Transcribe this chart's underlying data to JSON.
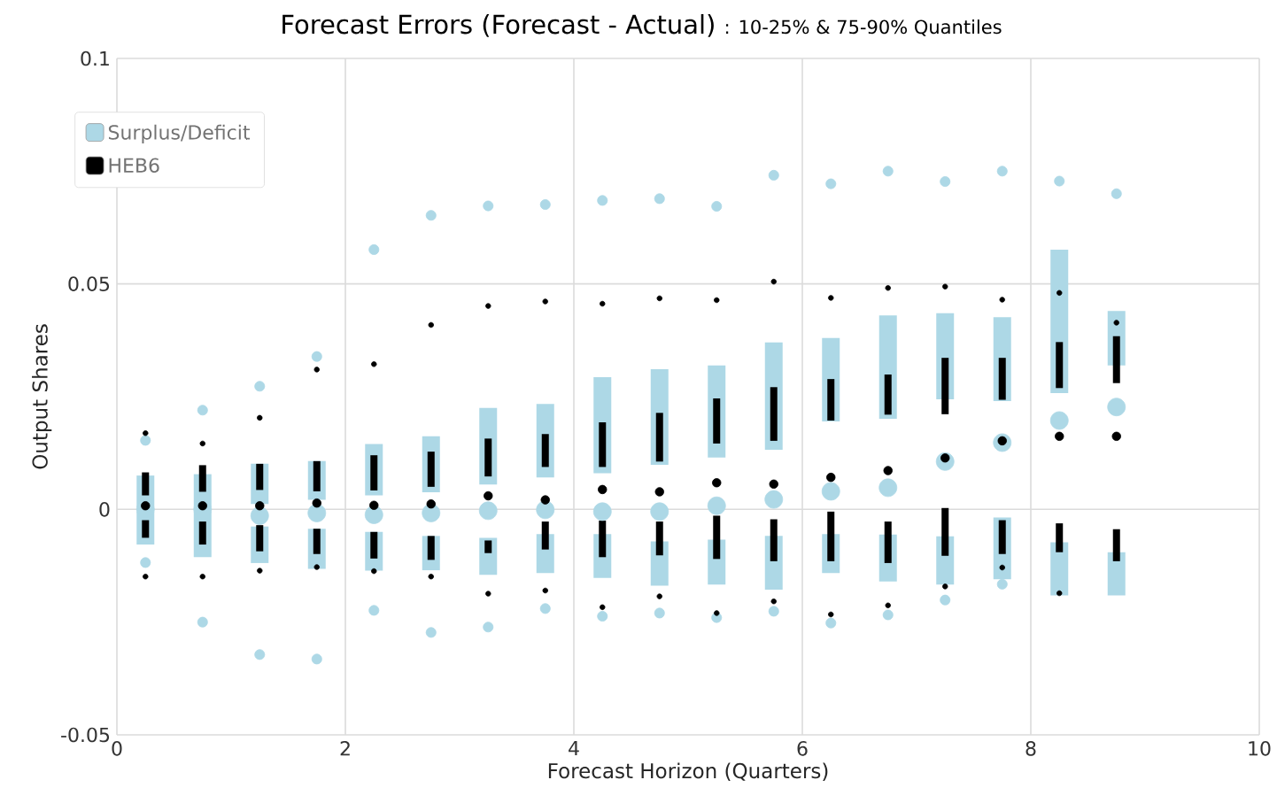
{
  "chart_data": {
    "type": "bar",
    "title": "Forecast Errors (Forecast - Actual)",
    "subtitle": ": 10-25% & 75-90% Quantiles",
    "xlabel": "Forecast Horizon (Quarters)",
    "ylabel": "Output Shares",
    "x": [
      0.25,
      0.75,
      1.25,
      1.75,
      2.25,
      2.75,
      3.25,
      3.75,
      4.25,
      4.75,
      5.25,
      5.75,
      6.25,
      6.75,
      7.25,
      7.75,
      8.25,
      8.75
    ],
    "xlim": [
      0,
      10
    ],
    "xticks": [
      0,
      2,
      4,
      6,
      8,
      10
    ],
    "ylim": [
      -0.05,
      0.1
    ],
    "yticks": [
      -0.05,
      0,
      0.05,
      0.1
    ],
    "grid": true,
    "legend": "top left",
    "series": [
      {
        "name": "Surplus/Deficit",
        "color": "#add8e6",
        "base": [
          0.0005,
          0.0005,
          0.0012,
          0.0021,
          0.0031,
          0.0038,
          0.0055,
          0.0071,
          0.008,
          0.0099,
          0.0115,
          0.0132,
          0.0195,
          0.0201,
          0.0244,
          0.024,
          0.0258,
          0.0319
        ],
        "values": [
          0.007,
          0.0073,
          0.0089,
          0.0086,
          0.0114,
          0.0124,
          0.017,
          0.0163,
          0.0213,
          0.0212,
          0.0204,
          0.0238,
          0.0185,
          0.0229,
          0.0191,
          0.0186,
          0.0318,
          0.0121
        ]
      },
      {
        "color": "#add8e6",
        "base": [
          -0.0078,
          -0.0106,
          -0.0119,
          -0.0132,
          -0.0136,
          -0.0135,
          -0.0145,
          -0.0141,
          -0.0152,
          -0.0169,
          -0.0167,
          -0.0178,
          -0.0141,
          -0.016,
          -0.0167,
          -0.0155,
          -0.0191,
          -0.0191
        ],
        "values": [
          0.0073,
          0.0101,
          0.0081,
          0.0089,
          0.0086,
          0.0076,
          0.0082,
          0.0086,
          0.0097,
          0.0098,
          0.01,
          0.0119,
          0.0086,
          0.0104,
          0.0107,
          0.0137,
          0.0118,
          0.0096
        ]
      },
      {
        "type": "scatter",
        "color": "#add8e6",
        "values": [
          0,
          0,
          -0.0014,
          -0.0008,
          -0.0012,
          -0.0008,
          -0.0003,
          -0.0001,
          -0.0005,
          -0.0005,
          0.0008,
          0.0022,
          0.004,
          0.0048,
          0.0106,
          0.0148,
          0.0197,
          0.0227
        ]
      },
      {
        "type": "scatter",
        "color": "#add8e6",
        "values": [
          0.0153,
          0.022,
          0.0273,
          0.0339,
          0.0576,
          0.0652,
          0.0673,
          0.0676,
          0.0685,
          0.0689,
          0.0672,
          0.0741,
          0.0722,
          0.075,
          0.0727,
          0.075,
          0.0728,
          0.07
        ]
      },
      {
        "type": "scatter",
        "color": "#add8e6",
        "values": [
          -0.0118,
          -0.025,
          -0.0322,
          -0.0332,
          -0.0224,
          -0.0273,
          -0.0261,
          -0.022,
          -0.0237,
          -0.023,
          -0.024,
          -0.0226,
          -0.0252,
          -0.0234,
          -0.0201,
          -0.0166,
          null,
          null
        ]
      },
      {
        "name": "HEB6",
        "color": "#000000",
        "base": [
          0.0031,
          0.0039,
          0.0043,
          0.004,
          0.0042,
          0.005,
          0.0073,
          0.0094,
          0.0094,
          0.0106,
          0.0146,
          0.0152,
          0.0197,
          0.021,
          0.0211,
          0.0243,
          0.0269,
          0.028
        ],
        "values": [
          0.0051,
          0.0059,
          0.0058,
          0.0067,
          0.0078,
          0.0078,
          0.0084,
          0.0073,
          0.0099,
          0.0108,
          0.01,
          0.0119,
          0.0092,
          0.0089,
          0.0125,
          0.0093,
          0.0102,
          0.0104
        ]
      },
      {
        "color": "#000000",
        "base": [
          -0.0063,
          -0.0078,
          -0.0093,
          -0.0099,
          -0.0109,
          -0.0112,
          -0.0097,
          -0.0089,
          -0.0106,
          -0.0102,
          -0.011,
          -0.0115,
          -0.0115,
          -0.0119,
          -0.0103,
          -0.0099,
          -0.0095,
          -0.0115
        ],
        "values": [
          0.0039,
          0.0051,
          0.0058,
          0.0056,
          0.0059,
          0.0053,
          0.0028,
          0.0062,
          0.0081,
          0.0075,
          0.0096,
          0.0093,
          0.011,
          0.0092,
          0.0106,
          0.0075,
          0.0064,
          0.0071
        ]
      },
      {
        "type": "scatter",
        "color": "#000000",
        "values": [
          0.0008,
          0.0008,
          0.0008,
          0.0014,
          0.0009,
          0.0012,
          0.003,
          0.0021,
          0.0044,
          0.0039,
          0.0059,
          0.0056,
          0.0071,
          0.0086,
          0.0114,
          0.0152,
          0.0162,
          0.0162
        ]
      },
      {
        "type": "scatter",
        "color": "#000000",
        "values": [
          0.0169,
          0.0146,
          0.0203,
          0.031,
          0.0322,
          0.0409,
          0.0451,
          0.0461,
          0.0456,
          0.0468,
          0.0464,
          0.0505,
          0.0469,
          0.0491,
          0.0494,
          0.0465,
          0.048,
          0.0414
        ]
      },
      {
        "type": "scatter",
        "color": "#000000",
        "values": [
          -0.0149,
          -0.0149,
          -0.0136,
          -0.0128,
          -0.0137,
          -0.0149,
          -0.0187,
          -0.018,
          -0.0217,
          -0.0193,
          -0.023,
          -0.0204,
          -0.0233,
          -0.0213,
          -0.0171,
          -0.0129,
          -0.0186,
          null
        ]
      }
    ]
  }
}
